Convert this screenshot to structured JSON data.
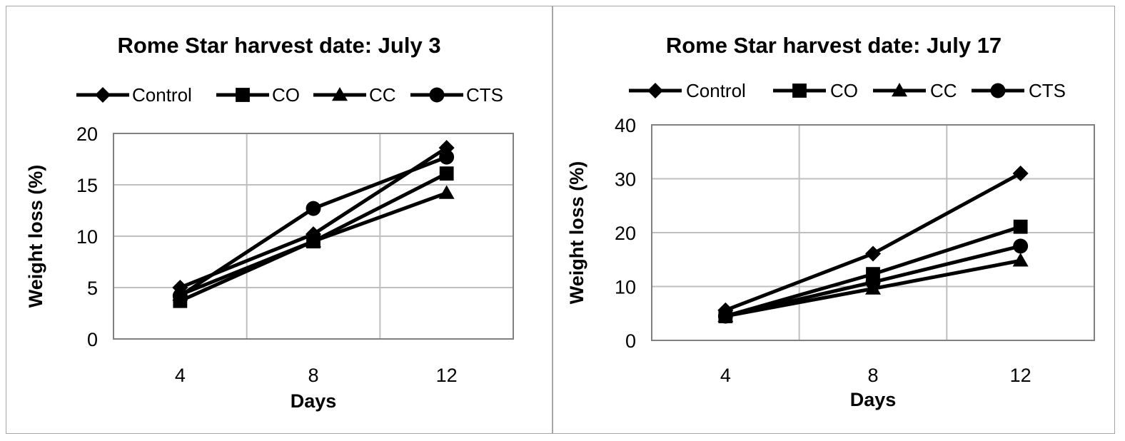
{
  "chart_data": [
    {
      "type": "line",
      "title": "Rome Star harvest date: July 3",
      "xlabel": "Days",
      "ylabel": "Weight loss (%)",
      "categories": [
        "4",
        "8",
        "12"
      ],
      "ylim": [
        0,
        20
      ],
      "yticks": [
        "0",
        "5",
        "10",
        "15",
        "20"
      ],
      "grid": true,
      "legend_position": "top",
      "series": [
        {
          "name": "Control",
          "marker": "diamond",
          "values": [
            5.0,
            10.2,
            18.6
          ]
        },
        {
          "name": "CO",
          "marker": "square",
          "values": [
            3.7,
            9.5,
            16.1
          ]
        },
        {
          "name": "CC",
          "marker": "triangle",
          "values": [
            4.3,
            9.5,
            14.2
          ]
        },
        {
          "name": "CTS",
          "marker": "circle",
          "values": [
            4.2,
            12.7,
            17.7
          ]
        }
      ]
    },
    {
      "type": "line",
      "title": "Rome Star harvest date: July  17",
      "xlabel": "Days",
      "ylabel": "Weight loss (%)",
      "categories": [
        "4",
        "8",
        "12"
      ],
      "ylim": [
        0,
        40
      ],
      "yticks": [
        "0",
        "10",
        "20",
        "30",
        "40"
      ],
      "grid": true,
      "legend_position": "top",
      "series": [
        {
          "name": "Control",
          "marker": "diamond",
          "values": [
            5.6,
            16.1,
            31.0
          ]
        },
        {
          "name": "CO",
          "marker": "square",
          "values": [
            4.5,
            12.3,
            21.1
          ]
        },
        {
          "name": "CC",
          "marker": "triangle",
          "values": [
            4.5,
            9.6,
            14.8
          ]
        },
        {
          "name": "CTS",
          "marker": "circle",
          "values": [
            4.5,
            10.8,
            17.5
          ]
        }
      ]
    }
  ],
  "colors": {
    "series": "#000000",
    "grid": "#bfbfbf",
    "plot_border": "#808080",
    "panel_border": "#a6a6a6"
  }
}
